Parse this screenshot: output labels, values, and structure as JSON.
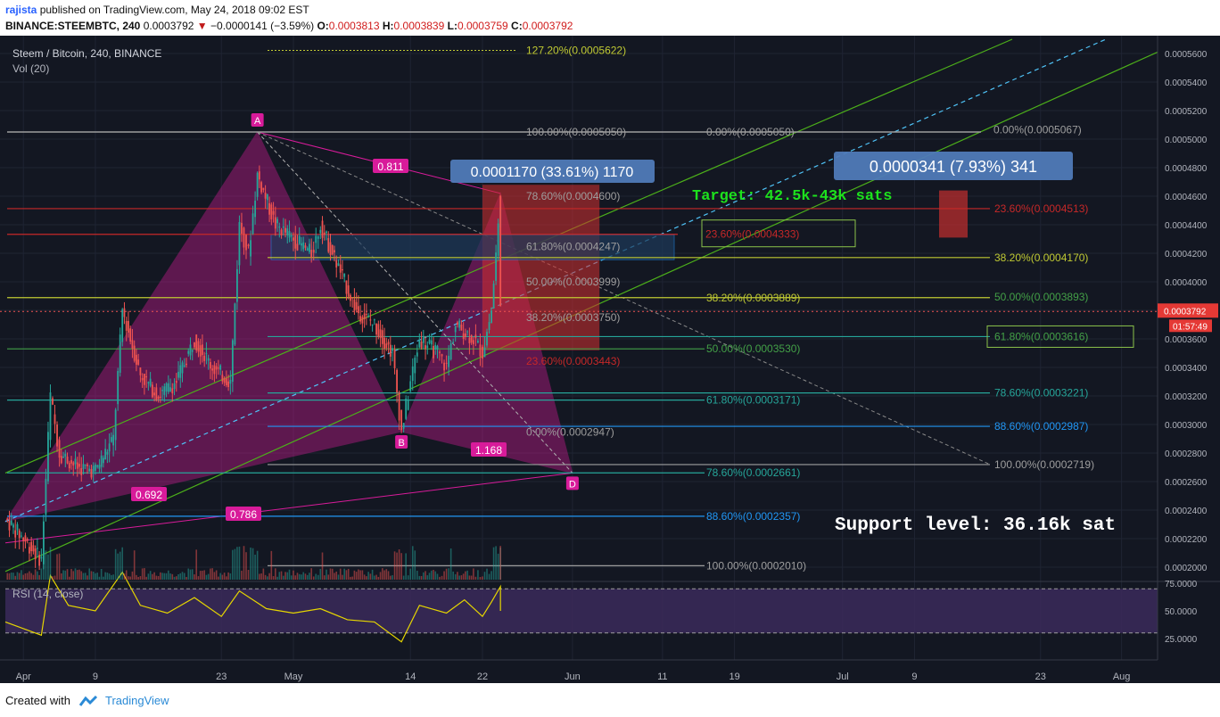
{
  "header": {
    "user": "rajista",
    "published": "published on TradingView.com, May 24, 2018 09:02 EST",
    "symbol": "BINANCE:STEEMBTC, 240",
    "last": "0.0003792",
    "change_arrow": "▼",
    "change": "−0.0000141 (−3.59%)",
    "o_label": "O:",
    "o_value": "0.0003813",
    "h_label": "H:",
    "h_value": "0.0003839",
    "l_label": "L:",
    "l_value": "0.0003759",
    "c_label": "C:",
    "c_value": "0.0003792"
  },
  "footer": {
    "created_with": "Created with",
    "brand": "TradingView",
    "logo_icon": "tradingview-logo-icon"
  },
  "colors": {
    "background": "#131722",
    "up": "#26a69a",
    "down": "#ef5350",
    "pattern": "#d81b9a",
    "fib_gray": "#9e9e9e",
    "fib_red": "#c62828",
    "fib_yellow": "#c0ca33",
    "fib_green": "#43a047",
    "fib_teal": "#26a69a",
    "fib_blue": "#2196f3",
    "rsi": "#e6d600",
    "rsi_band": "#3b2a5a",
    "channel": "#4caf1a",
    "dash_cyan": "#4fc3f7",
    "price_badge": "#e53935"
  },
  "chart_data": {
    "type": "candlestick",
    "title": "Steem / Bitcoin, 240, BINANCE",
    "volume_label": "Vol (20)",
    "rsi_label": "RSI (14, close)",
    "y_axis": {
      "range": [
        0.00019,
        0.00057
      ],
      "ticks": [
        "0.0005600",
        "0.0005400",
        "0.0005200",
        "0.0005000",
        "0.0004800",
        "0.0004600",
        "0.0004400",
        "0.0004200",
        "0.0004000",
        "0.0003800",
        "0.0003600",
        "0.0003400",
        "0.0003200",
        "0.0003000",
        "0.0002800",
        "0.0002600",
        "0.0002400",
        "0.0002200",
        "0.0002000"
      ],
      "tick_values": [
        0.00056,
        0.00054,
        0.00052,
        0.0005,
        0.00048,
        0.00046,
        0.00044,
        0.00042,
        0.0004,
        0.00038,
        0.00036,
        0.00034,
        0.00032,
        0.0003,
        0.00028,
        0.00026,
        0.00024,
        0.00022,
        0.0002
      ],
      "last_price": "0.0003792",
      "last_value": 0.0003792,
      "countdown": "01:57:49"
    },
    "rsi_axis": {
      "ticks": [
        "75.0000",
        "50.0000",
        "25.0000"
      ],
      "tick_values": [
        75,
        50,
        25
      ],
      "upper_band": 70,
      "lower_band": 30
    },
    "x_axis": {
      "ticks": [
        "Apr",
        "9",
        "23",
        "May",
        "14",
        "22",
        "Jun",
        "11",
        "19",
        "Jul",
        "9",
        "23",
        "Aug"
      ],
      "tick_dates": [
        "2018-04-01",
        "2018-04-09",
        "2018-04-23",
        "2018-05-01",
        "2018-05-14",
        "2018-05-22",
        "2018-06-01",
        "2018-06-11",
        "2018-06-19",
        "2018-07-01",
        "2018-07-09",
        "2018-07-23",
        "2018-08-01"
      ]
    },
    "price_path": [
      [
        "2018-03-30",
        0.000234
      ],
      [
        "2018-04-01",
        0.00022
      ],
      [
        "2018-04-03",
        0.000205
      ],
      [
        "2018-04-04",
        0.00032
      ],
      [
        "2018-04-05",
        0.00028
      ],
      [
        "2018-04-07",
        0.00027
      ],
      [
        "2018-04-09",
        0.000268
      ],
      [
        "2018-04-11",
        0.00029
      ],
      [
        "2018-04-12",
        0.00038
      ],
      [
        "2018-04-14",
        0.000335
      ],
      [
        "2018-04-16",
        0.00032
      ],
      [
        "2018-04-18",
        0.00033
      ],
      [
        "2018-04-20",
        0.00036
      ],
      [
        "2018-04-22",
        0.00034
      ],
      [
        "2018-04-24",
        0.00033
      ],
      [
        "2018-04-25",
        0.00044
      ],
      [
        "2018-04-26",
        0.00042
      ],
      [
        "2018-04-27",
        0.000475
      ],
      [
        "2018-04-29",
        0.00044
      ],
      [
        "2018-05-01",
        0.00043
      ],
      [
        "2018-05-03",
        0.00042
      ],
      [
        "2018-05-04",
        0.00044
      ],
      [
        "2018-05-06",
        0.00041
      ],
      [
        "2018-05-08",
        0.00038
      ],
      [
        "2018-05-10",
        0.00037
      ],
      [
        "2018-05-12",
        0.00035
      ],
      [
        "2018-05-13",
        0.000295
      ],
      [
        "2018-05-14",
        0.00033
      ],
      [
        "2018-05-15",
        0.00036
      ],
      [
        "2018-05-17",
        0.00035
      ],
      [
        "2018-05-18",
        0.00034
      ],
      [
        "2018-05-19",
        0.00037
      ],
      [
        "2018-05-21",
        0.00036
      ],
      [
        "2018-05-22",
        0.00035
      ],
      [
        "2018-05-23",
        0.00038
      ],
      [
        "2018-05-24",
        0.000458
      ],
      [
        "2018-05-24",
        0.0003792
      ]
    ],
    "rsi_path": [
      [
        "2018-03-30",
        40
      ],
      [
        "2018-04-03",
        28
      ],
      [
        "2018-04-04",
        82
      ],
      [
        "2018-04-06",
        55
      ],
      [
        "2018-04-09",
        50
      ],
      [
        "2018-04-12",
        85
      ],
      [
        "2018-04-14",
        55
      ],
      [
        "2018-04-17",
        48
      ],
      [
        "2018-04-20",
        62
      ],
      [
        "2018-04-23",
        45
      ],
      [
        "2018-04-25",
        68
      ],
      [
        "2018-04-28",
        52
      ],
      [
        "2018-05-01",
        48
      ],
      [
        "2018-05-04",
        52
      ],
      [
        "2018-05-07",
        42
      ],
      [
        "2018-05-10",
        40
      ],
      [
        "2018-05-13",
        22
      ],
      [
        "2018-05-15",
        55
      ],
      [
        "2018-05-18",
        48
      ],
      [
        "2018-05-20",
        60
      ],
      [
        "2018-05-22",
        45
      ],
      [
        "2018-05-23",
        58
      ],
      [
        "2018-05-24",
        72
      ],
      [
        "2018-05-24",
        50
      ]
    ],
    "pattern": {
      "points": [
        {
          "label": "A",
          "date": "2018-04-27",
          "value": 0.000505
        },
        {
          "label": "B",
          "date": "2018-05-13",
          "value": 0.000295
        },
        {
          "label": "D",
          "date": "2018-06-01",
          "value": 0.000266
        }
      ],
      "ratios": [
        "0.811",
        "1.168",
        "0.692",
        "0.786"
      ]
    },
    "measures": [
      {
        "text": "0.0001170 (33.61%) 1170"
      },
      {
        "text": "0.0000341 (7.93%) 341"
      }
    ],
    "annotations": [
      "Target: 42.5k-43k sats",
      "Support level: 36.16k sat"
    ],
    "fib_levels": [
      {
        "text": "127.20%(0.0005622)",
        "color": "fib_yellow",
        "value": 0.0005622
      },
      {
        "text": "100.00%(0.0005050)",
        "color": "fib_gray",
        "value": 0.000505
      },
      {
        "text": "0.00%(0.0005050)",
        "color": "fib_gray",
        "value": 0.000505
      },
      {
        "text": "0.00%(0.0005067)",
        "color": "fib_gray",
        "value": 0.0005067
      },
      {
        "text": "78.60%(0.0004600)",
        "color": "fib_gray",
        "value": 0.00046
      },
      {
        "text": "23.60%(0.0004513)",
        "color": "fib_red",
        "value": 0.0004513
      },
      {
        "text": "23.60%(0.0004333)",
        "color": "fib_red",
        "value": 0.0004333
      },
      {
        "text": "61.80%(0.0004247)",
        "color": "fib_gray",
        "value": 0.0004247
      },
      {
        "text": "38.20%(0.0004170)",
        "color": "fib_yellow",
        "value": 0.000417
      },
      {
        "text": "50.00%(0.0003999)",
        "color": "fib_gray",
        "value": 0.0003999
      },
      {
        "text": "38.20%(0.0003889)",
        "color": "fib_yellow",
        "value": 0.0003889
      },
      {
        "text": "50.00%(0.0003893)",
        "color": "fib_green",
        "value": 0.0003893
      },
      {
        "text": "38.20%(0.0003750)",
        "color": "fib_gray",
        "value": 0.000375
      },
      {
        "text": "61.80%(0.0003616)",
        "color": "fib_green",
        "value": 0.0003616
      },
      {
        "text": "50.00%(0.0003530)",
        "color": "fib_green",
        "value": 0.000353
      },
      {
        "text": "23.60%(0.0003443)",
        "color": "fib_red",
        "value": 0.0003443
      },
      {
        "text": "78.60%(0.0003221)",
        "color": "fib_teal",
        "value": 0.0003221
      },
      {
        "text": "61.80%(0.0003171)",
        "color": "fib_teal",
        "value": 0.0003171
      },
      {
        "text": "88.60%(0.0002987)",
        "color": "fib_blue",
        "value": 0.0002987
      },
      {
        "text": "0.00%(0.0002947)",
        "color": "fib_gray",
        "value": 0.0002947
      },
      {
        "text": "100.00%(0.0002719)",
        "color": "fib_gray",
        "value": 0.0002719
      },
      {
        "text": "78.60%(0.0002661)",
        "color": "fib_teal",
        "value": 0.0002661
      },
      {
        "text": "88.60%(0.0002357)",
        "color": "fib_blue",
        "value": 0.0002357
      },
      {
        "text": "100.00%(0.0002010)",
        "color": "fib_gray",
        "value": 0.000201
      }
    ]
  }
}
